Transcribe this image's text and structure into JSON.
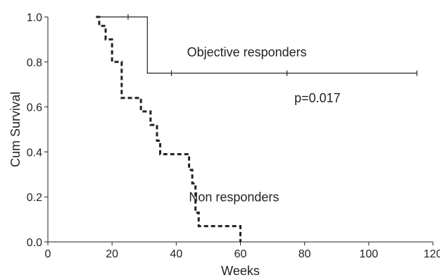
{
  "chart_data": {
    "type": "line",
    "title": "",
    "xlabel": "Weeks",
    "ylabel": "Cum Survival",
    "xlim": [
      0,
      120
    ],
    "ylim": [
      0,
      1.0
    ],
    "xticks": [
      0,
      20,
      40,
      60,
      80,
      100,
      120
    ],
    "xtick_labels": [
      "0",
      "20",
      "40",
      "60",
      "80",
      "100",
      "120"
    ],
    "yticks": [
      0,
      0.2,
      0.4,
      0.6,
      0.8,
      1.0
    ],
    "ytick_labels": [
      "0.0",
      "0.2",
      "0.4",
      "0.6",
      "0.8",
      "1.0"
    ],
    "grid": false,
    "series": [
      {
        "name": "Objective responders",
        "style": "solid",
        "step_x": [
          15,
          31,
          115
        ],
        "step_y": [
          1.0,
          0.75,
          0.75
        ],
        "censored": [
          {
            "x": 25,
            "y": 1.0
          },
          {
            "x": 38.5,
            "y": 0.75
          },
          {
            "x": 74.5,
            "y": 0.75
          },
          {
            "x": 115,
            "y": 0.75
          }
        ]
      },
      {
        "name": "Non responders",
        "style": "dashed",
        "step_x": [
          15,
          16,
          18,
          20,
          23,
          29,
          32,
          34,
          35,
          44,
          45,
          46,
          47,
          60,
          60
        ],
        "step_y": [
          1.0,
          0.96,
          0.9,
          0.8,
          0.64,
          0.58,
          0.52,
          0.45,
          0.39,
          0.32,
          0.26,
          0.13,
          0.07,
          0.07,
          0.0
        ],
        "censored": []
      }
    ],
    "annotations": [
      {
        "text": "Objective responders",
        "x": 62,
        "y": 0.825
      },
      {
        "text": "p=0.017",
        "x": 84,
        "y": 0.62
      },
      {
        "text": "Non responders",
        "x": 58,
        "y": 0.18
      }
    ],
    "colors": {
      "line": "#222222",
      "axis": "#222222",
      "background": "#ffffff"
    }
  }
}
